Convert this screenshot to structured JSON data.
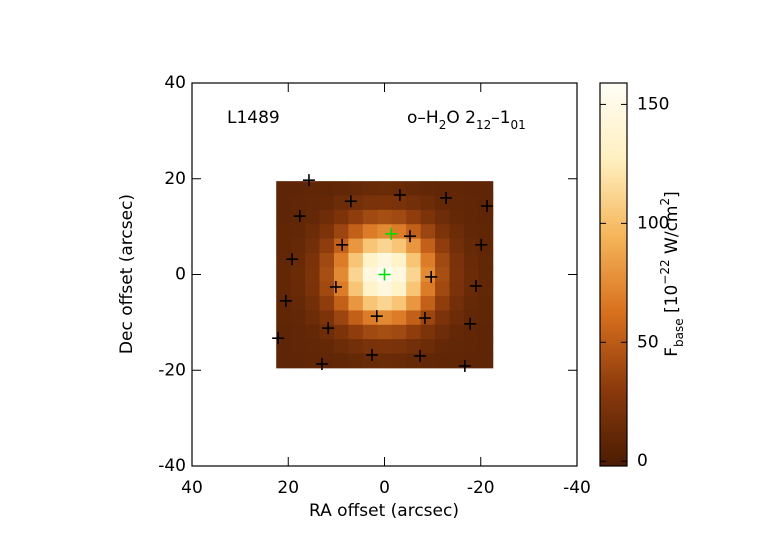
{
  "chart_data": {
    "type": "heatmap",
    "xlabel": "RA offset (arcsec)",
    "ylabel": "Dec offset (arcsec)",
    "xlim": [
      40,
      -40
    ],
    "xticks": [
      40,
      20,
      0,
      -20,
      -40
    ],
    "ylim": [
      -40,
      40
    ],
    "yticks": [
      -40,
      -20,
      0,
      20,
      40
    ],
    "annotations": [
      {
        "parts": [
          {
            "text": "L1489"
          }
        ]
      },
      {
        "parts": [
          {
            "text": "o–H"
          },
          {
            "text": "2",
            "shift": "sub"
          },
          {
            "text": "O 2"
          },
          {
            "text": "12",
            "shift": "sub"
          },
          {
            "text": "–1"
          },
          {
            "text": "01",
            "shift": "sub"
          }
        ]
      }
    ],
    "x": [
      21,
      18,
      15,
      12,
      9,
      6,
      3,
      0,
      -3,
      -6,
      -9,
      -12,
      -15,
      -18,
      -21
    ],
    "y": [
      18,
      15,
      12,
      9,
      6,
      3,
      0,
      -3,
      -6,
      -9,
      -12,
      -15,
      -18
    ],
    "z": [
      [
        8,
        8,
        9,
        9,
        10,
        12,
        13,
        14,
        13,
        12,
        10,
        9,
        9,
        8,
        8
      ],
      [
        8,
        9,
        10,
        11,
        15,
        18,
        22,
        23,
        22,
        18,
        15,
        11,
        10,
        9,
        8
      ],
      [
        8,
        9,
        11,
        16,
        23,
        32,
        39,
        42,
        39,
        32,
        23,
        16,
        11,
        9,
        8
      ],
      [
        9,
        10,
        15,
        23,
        37,
        53,
        68,
        74,
        68,
        53,
        37,
        23,
        15,
        10,
        9
      ],
      [
        9,
        12,
        18,
        32,
        53,
        80,
        103,
        112,
        103,
        80,
        53,
        32,
        18,
        12,
        9
      ],
      [
        10,
        13,
        22,
        39,
        68,
        103,
        133,
        145,
        133,
        103,
        68,
        39,
        22,
        13,
        10
      ],
      [
        10,
        14,
        23,
        42,
        74,
        112,
        145,
        158,
        145,
        112,
        74,
        42,
        23,
        14,
        10
      ],
      [
        10,
        13,
        22,
        39,
        68,
        103,
        133,
        145,
        133,
        103,
        68,
        39,
        22,
        13,
        10
      ],
      [
        9,
        12,
        18,
        32,
        53,
        80,
        103,
        112,
        103,
        80,
        53,
        32,
        18,
        12,
        9
      ],
      [
        9,
        10,
        15,
        23,
        37,
        53,
        68,
        74,
        68,
        53,
        37,
        23,
        15,
        10,
        9
      ],
      [
        8,
        9,
        11,
        16,
        23,
        32,
        39,
        42,
        39,
        32,
        23,
        16,
        11,
        9,
        8
      ],
      [
        8,
        9,
        10,
        11,
        15,
        18,
        22,
        23,
        22,
        18,
        15,
        11,
        10,
        9,
        8
      ],
      [
        8,
        8,
        9,
        9,
        10,
        12,
        13,
        14,
        13,
        12,
        10,
        9,
        9,
        8,
        8
      ]
    ],
    "colormap": [
      "#4a1c03",
      "#8b3a0c",
      "#d8701e",
      "#f5b55a",
      "#fff0c0",
      "#fffdf5"
    ],
    "clim": [
      -2,
      159
    ],
    "cticks": [
      0,
      50,
      100,
      150
    ],
    "clabel": [
      {
        "text": "F"
      },
      {
        "text": "base",
        "shift": "sub"
      },
      {
        "text": " [10"
      },
      {
        "text": "−22",
        "shift": "super"
      },
      {
        "text": " W/cm"
      },
      {
        "text": "2",
        "shift": "super"
      },
      {
        "text": "]"
      }
    ],
    "markers": [
      {
        "color": "#000000",
        "x": [
          15.7,
          17.6,
          7.0,
          -3.2,
          -12.8,
          -21.3,
          19.2,
          8.8,
          -5.3,
          -20.1,
          20.5,
          10.1,
          -9.7,
          -19.0,
          11.7,
          1.6,
          -8.4,
          -17.8,
          22.1,
          13.0,
          2.6,
          -7.4,
          -16.7
        ],
        "y": [
          19.7,
          12.2,
          15.3,
          16.6,
          16.0,
          14.3,
          3.2,
          6.2,
          8.0,
          6.2,
          -5.5,
          -2.6,
          -0.5,
          -2.4,
          -11.2,
          -8.7,
          -9.1,
          -10.3,
          -13.3,
          -18.7,
          -16.8,
          -17.0,
          -19.1
        ]
      },
      {
        "color": "#00dd00",
        "x": [
          0,
          -1.4
        ],
        "y": [
          0,
          8.5
        ]
      }
    ]
  }
}
